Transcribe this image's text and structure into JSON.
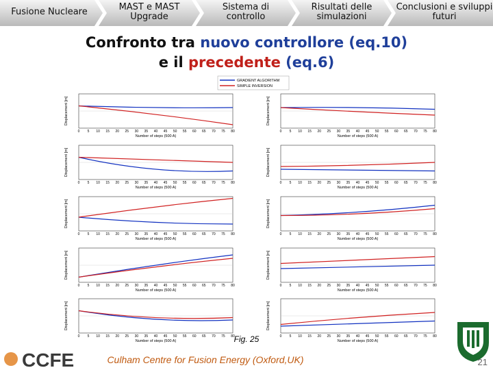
{
  "nav": {
    "tabs": [
      "Fusione Nucleare",
      "MAST e MAST Upgrade",
      "Sistema di controllo",
      "Risultati delle simulazioni",
      "Conclusioni e sviluppi futuri"
    ]
  },
  "title": {
    "line1": [
      {
        "text": "Confronto tra ",
        "color": "#111111"
      },
      {
        "text": "nuovo controllore (eq.10)",
        "color": "#1f3f9a"
      }
    ],
    "line2": [
      {
        "text": "e il ",
        "color": "#111111"
      },
      {
        "text": "precedente",
        "color": "#c0201a"
      },
      {
        "text": " (eq.6)",
        "color": "#1f3f9a"
      }
    ]
  },
  "figure": {
    "legend": [
      {
        "name": "GRADIENT ALGORITHM",
        "color": "#1030c0"
      },
      {
        "name": "SIMPLE INVERSION",
        "color": "#d02020"
      }
    ],
    "x_label": "Number of steps (500 A)",
    "y_label": "Displacement [m]",
    "xticks": [
      0,
      5,
      10,
      15,
      20,
      25,
      30,
      35,
      40,
      45,
      50,
      55,
      60,
      65,
      70,
      75,
      80
    ],
    "caption": "Fig. 25"
  },
  "footer": {
    "logo": "CCFE",
    "institution": "Culham Centre for Fusion Energy (Oxford,UK)",
    "page": "21"
  }
}
